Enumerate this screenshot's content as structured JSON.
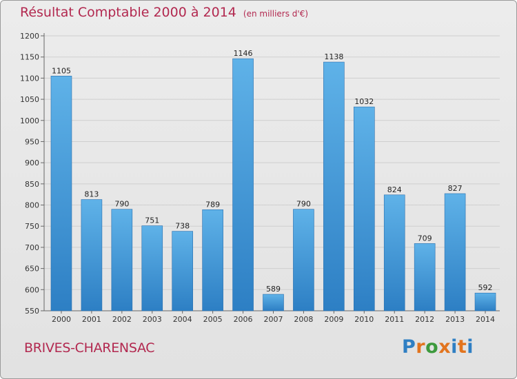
{
  "header": {
    "title": "Résultat Comptable 2000 à 2014",
    "unit": "(en milliers d'€)"
  },
  "footer": {
    "town": "BRIVES-CHARENSAC",
    "logo_letters": [
      "P",
      "r",
      "o",
      "x",
      "i",
      "t",
      "i"
    ]
  },
  "colors": {
    "title": "#b2284f",
    "bar_top": "#5fb2e8",
    "bar_bottom": "#2d7fc4",
    "logo": [
      "#2f7fc3",
      "#e2741e",
      "#3d9a3d",
      "#e2741e",
      "#2f7fc3",
      "#e2741e",
      "#2f7fc3"
    ]
  },
  "chart_data": {
    "type": "bar",
    "title": "Résultat Comptable 2000 à 2014",
    "subtitle": "(en milliers d'€)",
    "xlabel": "",
    "ylabel": "",
    "categories": [
      "2000",
      "2001",
      "2002",
      "2003",
      "2004",
      "2005",
      "2006",
      "2007",
      "2008",
      "2009",
      "2010",
      "2011",
      "2012",
      "2013",
      "2014"
    ],
    "values": [
      1105,
      813,
      790,
      751,
      738,
      789,
      1146,
      589,
      790,
      1138,
      1032,
      824,
      709,
      827,
      592
    ],
    "ylim": [
      550,
      1200
    ],
    "yticks": [
      550,
      600,
      650,
      700,
      750,
      800,
      850,
      900,
      950,
      1000,
      1050,
      1100,
      1150,
      1200
    ],
    "grid": true
  }
}
